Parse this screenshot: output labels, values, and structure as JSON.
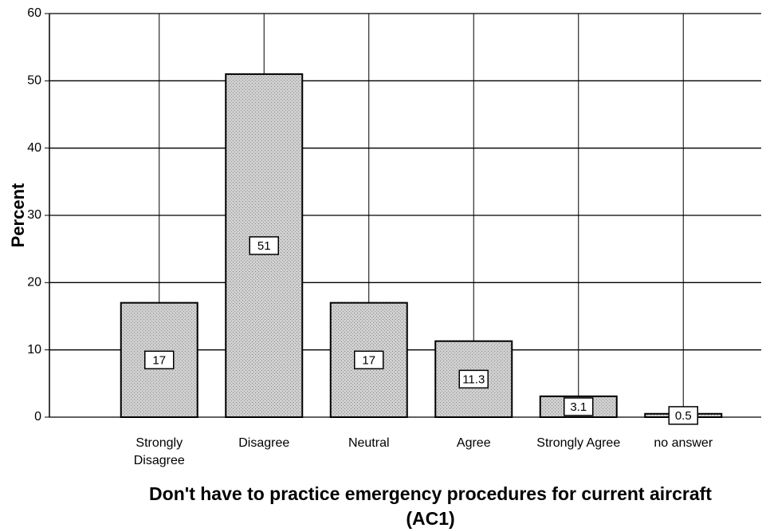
{
  "chart_data": {
    "type": "bar",
    "x_label": "Don't have to practice emergency procedures for current aircraft (AC1)",
    "y_label": "Percent",
    "categories": [
      "Strongly Disagree",
      "Disagree",
      "Neutral",
      "Agree",
      "Strongly Agree",
      "no answer"
    ],
    "values": [
      17,
      51,
      17,
      11.3,
      3.1,
      0.5
    ],
    "color": "#c4c4c4",
    "ylim": [
      0,
      60
    ],
    "yticks": [
      0,
      10,
      20,
      30,
      40,
      50,
      60
    ],
    "grid": true
  }
}
